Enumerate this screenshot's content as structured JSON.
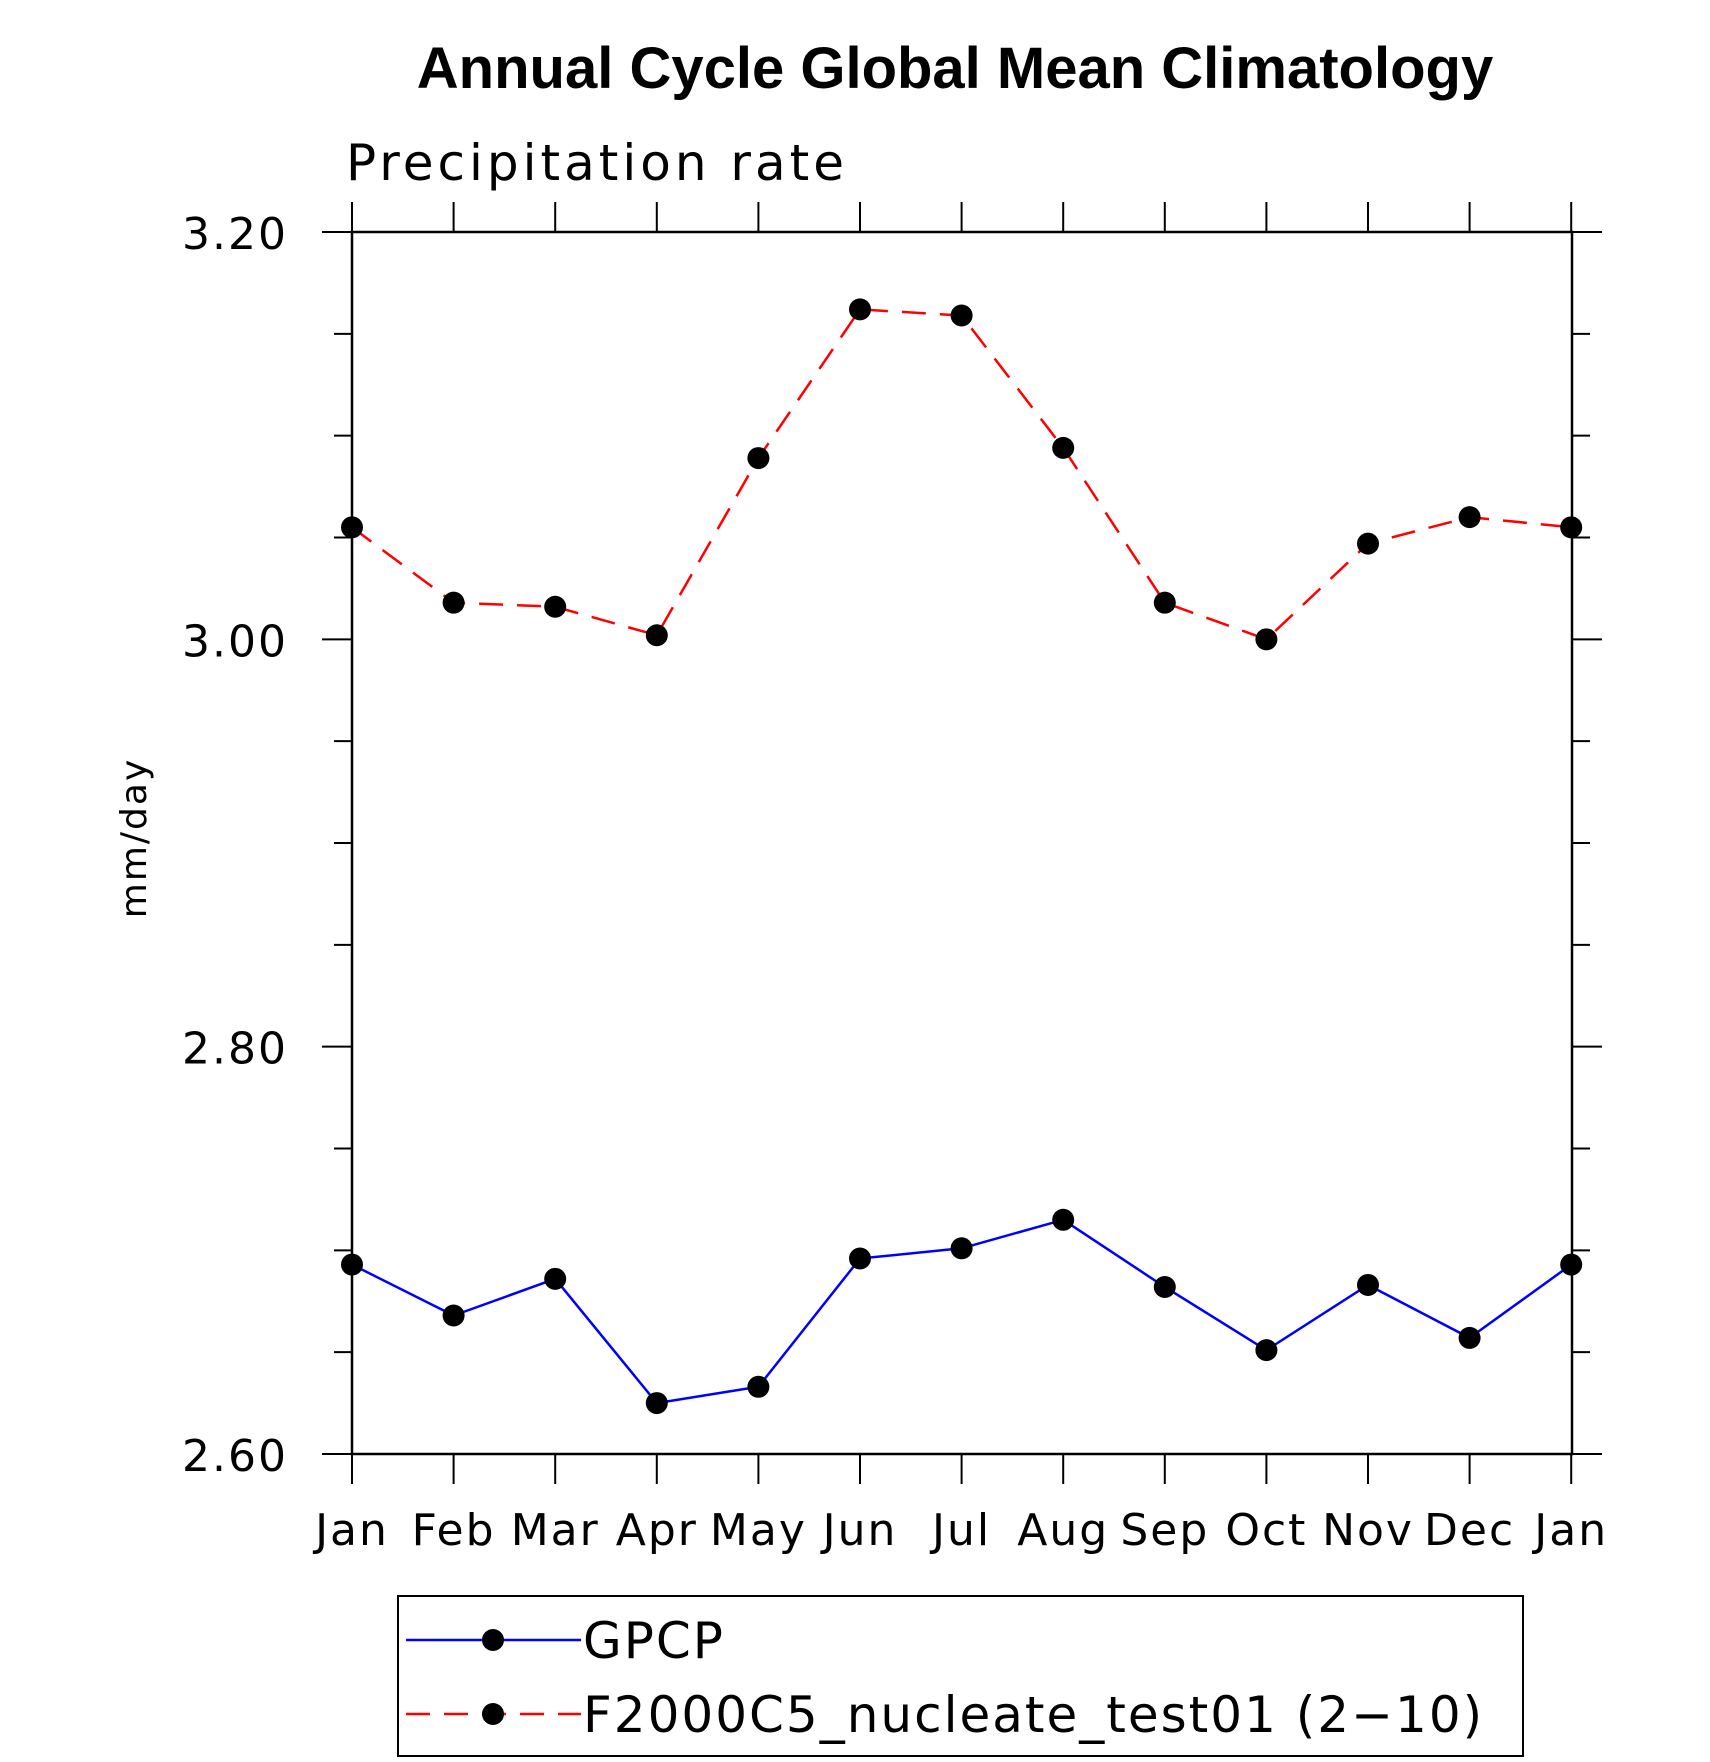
{
  "chart_data": {
    "type": "line",
    "title": "Annual Cycle Global Mean Climatology",
    "subtitle": "Precipitation rate",
    "xlabel": "",
    "ylabel": "mm/day",
    "categories": [
      "Jan",
      "Feb",
      "Mar",
      "Apr",
      "May",
      "Jun",
      "Jul",
      "Aug",
      "Sep",
      "Oct",
      "Nov",
      "Dec",
      "Jan"
    ],
    "ylim": [
      2.6,
      3.2
    ],
    "yticks": [
      "2.60",
      "2.80",
      "3.00",
      "3.20"
    ],
    "series": [
      {
        "name": "GPCP",
        "color": "#0000ff",
        "style": "solid",
        "marker": "filled-circle",
        "values": [
          2.693,
          2.668,
          2.686,
          2.625,
          2.633,
          2.696,
          2.701,
          2.715,
          2.682,
          2.651,
          2.683,
          2.657,
          2.693
        ]
      },
      {
        "name": "F2000C5_nucleate_test01 (2−10)",
        "color": "#ff0000",
        "style": "dashed",
        "marker": "filled-circle",
        "values": [
          3.055,
          3.018,
          3.016,
          3.002,
          3.089,
          3.162,
          3.159,
          3.094,
          3.018,
          3.0,
          3.047,
          3.06,
          3.055
        ]
      }
    ],
    "legend_placement": "bottom-center",
    "grid": false
  }
}
